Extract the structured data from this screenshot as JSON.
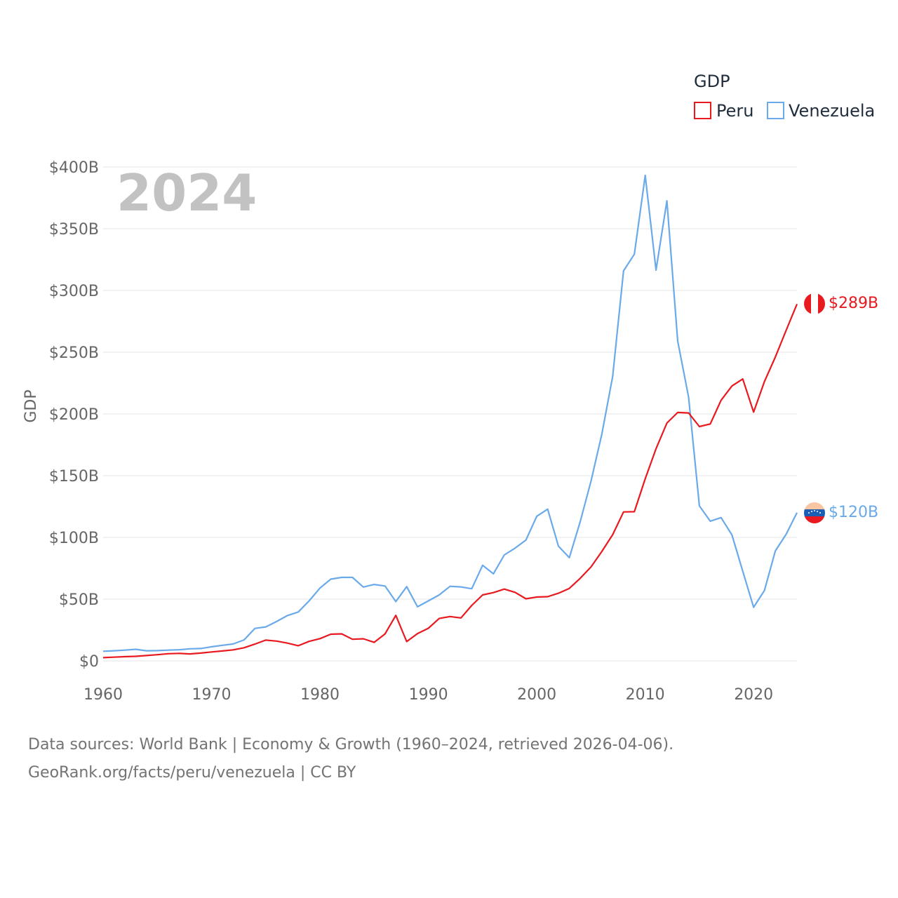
{
  "chart_data": {
    "type": "line",
    "legend_title": "GDP",
    "year_label": "2024",
    "ylabel": "GDP",
    "xlabel": "",
    "xlim": [
      1960,
      2024
    ],
    "ylim": [
      0,
      400
    ],
    "y_unit": "billion USD",
    "x_ticks": [
      "1960",
      "1970",
      "1980",
      "1990",
      "2000",
      "2010",
      "2020"
    ],
    "y_ticks": [
      {
        "value": 0,
        "label": "$0"
      },
      {
        "value": 50,
        "label": "$50B"
      },
      {
        "value": 100,
        "label": "$100B"
      },
      {
        "value": 150,
        "label": "$150B"
      },
      {
        "value": 200,
        "label": "$200B"
      },
      {
        "value": 250,
        "label": "$250B"
      },
      {
        "value": 300,
        "label": "$300B"
      },
      {
        "value": 350,
        "label": "$350B"
      },
      {
        "value": 400,
        "label": "$400B"
      }
    ],
    "x": [
      1960,
      1961,
      1962,
      1963,
      1964,
      1965,
      1966,
      1967,
      1968,
      1969,
      1970,
      1971,
      1972,
      1973,
      1974,
      1975,
      1976,
      1977,
      1978,
      1979,
      1980,
      1981,
      1982,
      1983,
      1984,
      1985,
      1986,
      1987,
      1988,
      1989,
      1990,
      1991,
      1992,
      1993,
      1994,
      1995,
      1996,
      1997,
      1998,
      1999,
      2000,
      2001,
      2002,
      2003,
      2004,
      2005,
      2006,
      2007,
      2008,
      2009,
      2010,
      2011,
      2012,
      2013,
      2014,
      2015,
      2016,
      2017,
      2018,
      2019,
      2020,
      2021,
      2022,
      2023,
      2024
    ],
    "series": [
      {
        "name": "Peru",
        "color": "#e8191f",
        "end_label": "$289B",
        "flag": "peru-flag-icon",
        "values": [
          2.6,
          3.0,
          3.4,
          3.7,
          4.3,
          5.0,
          5.8,
          6.1,
          5.6,
          6.3,
          7.2,
          8.0,
          8.9,
          10.6,
          13.6,
          16.8,
          16.0,
          14.4,
          12.3,
          15.8,
          18.0,
          21.6,
          21.9,
          17.5,
          17.9,
          15.0,
          21.8,
          36.8,
          15.6,
          22.1,
          26.4,
          34.3,
          35.9,
          34.8,
          44.9,
          53.4,
          55.3,
          58.1,
          55.5,
          50.3,
          51.7,
          52.0,
          54.8,
          58.7,
          66.8,
          76.1,
          88.6,
          102.2,
          120.6,
          120.8,
          147.5,
          171.8,
          192.6,
          201.2,
          200.8,
          189.8,
          191.9,
          211.0,
          222.6,
          228.3,
          201.5,
          226.2,
          246.0,
          267.6,
          289.0
        ]
      },
      {
        "name": "Venezuela",
        "color": "#6aaaea",
        "end_label": "$120B",
        "flag": "venezuela-flag-icon",
        "values": [
          7.8,
          8.2,
          8.7,
          9.4,
          8.2,
          8.3,
          8.7,
          9.0,
          9.8,
          10.0,
          11.4,
          12.6,
          13.7,
          17.0,
          26.3,
          27.5,
          31.9,
          36.7,
          39.6,
          48.6,
          59.0,
          66.2,
          67.6,
          67.6,
          59.8,
          61.9,
          60.6,
          48.0,
          60.1,
          43.8,
          48.6,
          53.4,
          60.4,
          59.9,
          58.4,
          77.4,
          70.5,
          85.8,
          91.3,
          97.9,
          117.1,
          122.9,
          92.9,
          83.6,
          112.5,
          145.5,
          183.5,
          230.4,
          315.9,
          329.4,
          393.2,
          316.5,
          372.6,
          258.9,
          213.7,
          125.5,
          113.1,
          116.0,
          102.0,
          72.6,
          43.4,
          57.0,
          89.0,
          102.5,
          120.0
        ]
      }
    ],
    "annotations": [],
    "grid": true
  },
  "footer": {
    "line1": "Data sources: World Bank | Economy & Growth (1960–2024, retrieved 2026-04-06).",
    "line2": "GeoRank.org/facts/peru/venezuela | CC BY"
  }
}
